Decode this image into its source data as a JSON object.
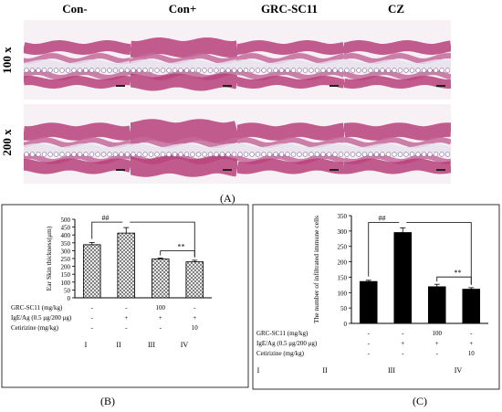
{
  "figure": {
    "columns": [
      "Con-",
      "Con+",
      "GRC-SC11",
      "CZ"
    ],
    "rows": [
      "100 x",
      "200 x"
    ],
    "label_a": "(A)",
    "label_b": "(B)",
    "label_c": "(C)"
  },
  "treatment_table": {
    "rows": [
      {
        "label": "GRC-SC11 (mg/kg)",
        "values": [
          "-",
          "-",
          "100",
          "-"
        ]
      },
      {
        "label": "IgE/Ag (0.5 μg/200 μg)",
        "values": [
          "-",
          "+",
          "+",
          "+"
        ]
      },
      {
        "label": "Cetirizine (mg/kg)",
        "values": [
          "-",
          "-",
          "-",
          "10"
        ]
      }
    ],
    "groups": [
      "I",
      "II",
      "III",
      "IV"
    ]
  },
  "chart_data": [
    {
      "type": "bar",
      "categories": [
        "I",
        "II",
        "III",
        "IV"
      ],
      "values": [
        338,
        412,
        247,
        229
      ],
      "errors": [
        14,
        35,
        6,
        10
      ],
      "ylabel": "Ear Skin thickness(μm)",
      "ylim": [
        0,
        500
      ],
      "yticks": [
        0,
        50,
        100,
        150,
        200,
        250,
        300,
        350,
        400,
        450,
        500
      ],
      "pattern": "crosshatch",
      "annotations": [
        "##",
        "**"
      ]
    },
    {
      "type": "bar",
      "categories": [
        "I",
        "II",
        "III",
        "IV"
      ],
      "values": [
        136,
        295,
        119,
        111
      ],
      "errors": [
        4,
        15,
        8,
        5
      ],
      "ylabel": "The number of infiltrated immune cells",
      "ylim": [
        0,
        350
      ],
      "yticks": [
        0,
        50,
        100,
        150,
        200,
        250,
        300,
        350
      ],
      "pattern": "solid",
      "annotations": [
        "##",
        "**"
      ]
    }
  ]
}
